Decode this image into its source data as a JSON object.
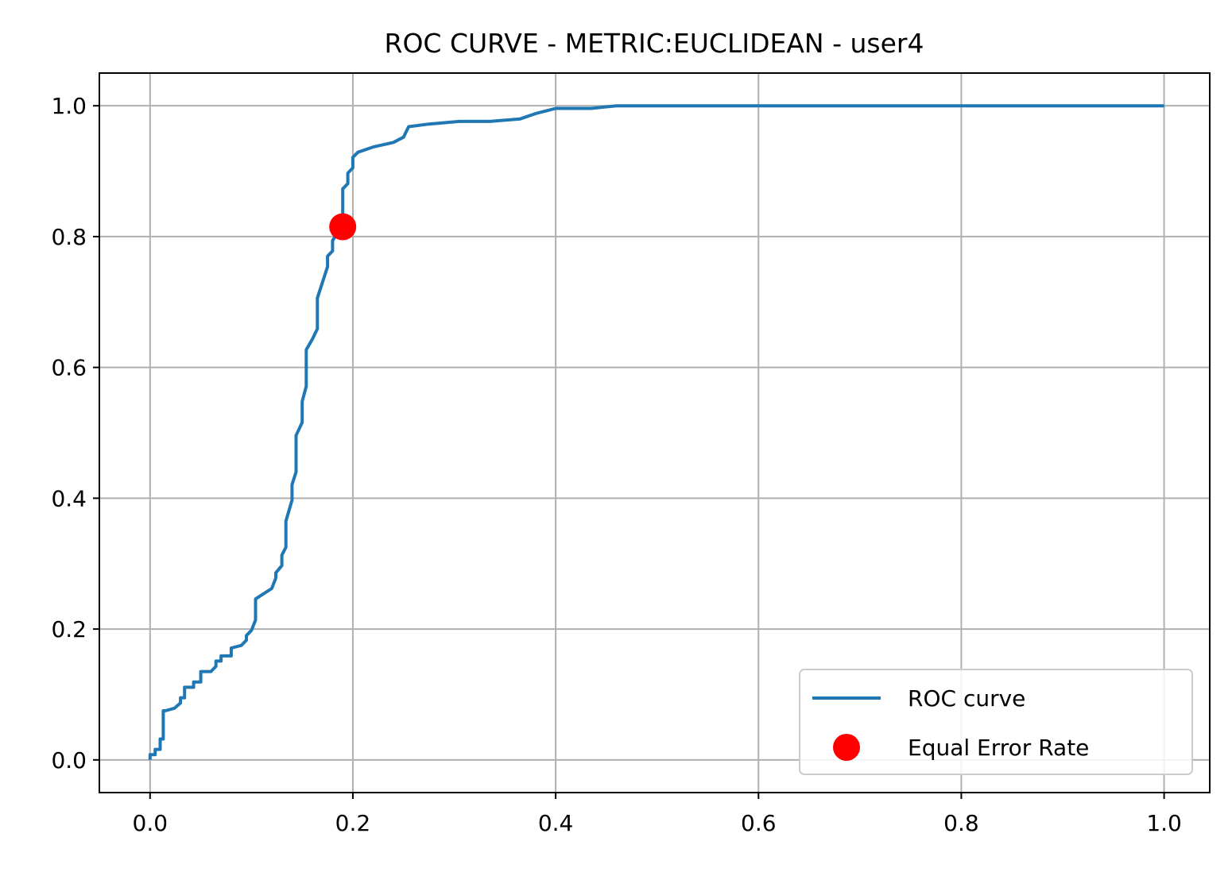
{
  "chart_data": {
    "type": "line",
    "title": "ROC CURVE - METRIC:EUCLIDEAN - user4",
    "xlabel": "",
    "ylabel": "",
    "xlim": [
      -0.05,
      1.045
    ],
    "ylim": [
      -0.05,
      1.05
    ],
    "x_ticks": [
      "0.0",
      "0.2",
      "0.4",
      "0.6",
      "0.8",
      "1.0"
    ],
    "y_ticks": [
      "0.0",
      "0.2",
      "0.4",
      "0.6",
      "0.8",
      "1.0"
    ],
    "grid": true,
    "legend_position": "lower right",
    "series": [
      {
        "name": "ROC curve",
        "color": "#1f77b4",
        "style": "line",
        "x": [
          0.0,
          0.0,
          0.005,
          0.005,
          0.01,
          0.01,
          0.013,
          0.013,
          0.015,
          0.015,
          0.024,
          0.03,
          0.03,
          0.034,
          0.034,
          0.043,
          0.043,
          0.05,
          0.05,
          0.06,
          0.065,
          0.065,
          0.07,
          0.07,
          0.08,
          0.08,
          0.09,
          0.095,
          0.095,
          0.1,
          0.104,
          0.104,
          0.12,
          0.124,
          0.124,
          0.13,
          0.13,
          0.134,
          0.134,
          0.14,
          0.14,
          0.144,
          0.144,
          0.15,
          0.15,
          0.154,
          0.154,
          0.16,
          0.165,
          0.165,
          0.175,
          0.175,
          0.18,
          0.18,
          0.19,
          0.19,
          0.195,
          0.195,
          0.2,
          0.2,
          0.205,
          0.22,
          0.24,
          0.25,
          0.255,
          0.275,
          0.305,
          0.335,
          0.365,
          0.38,
          0.4,
          0.405,
          0.435,
          0.46,
          1.0
        ],
        "y": [
          0.0,
          0.008,
          0.008,
          0.016,
          0.016,
          0.032,
          0.032,
          0.075,
          0.075,
          0.075,
          0.079,
          0.087,
          0.095,
          0.095,
          0.111,
          0.111,
          0.119,
          0.119,
          0.135,
          0.135,
          0.143,
          0.151,
          0.151,
          0.159,
          0.159,
          0.171,
          0.175,
          0.183,
          0.19,
          0.198,
          0.214,
          0.246,
          0.262,
          0.278,
          0.286,
          0.297,
          0.313,
          0.325,
          0.365,
          0.397,
          0.421,
          0.44,
          0.496,
          0.516,
          0.548,
          0.571,
          0.627,
          0.643,
          0.659,
          0.706,
          0.754,
          0.77,
          0.778,
          0.794,
          0.817,
          0.873,
          0.881,
          0.897,
          0.905,
          0.921,
          0.929,
          0.937,
          0.944,
          0.952,
          0.968,
          0.972,
          0.976,
          0.976,
          0.98,
          0.988,
          0.996,
          0.996,
          0.996,
          1.0,
          1.0
        ]
      },
      {
        "name": "Equal Error Rate",
        "color": "#ff0000",
        "style": "marker",
        "x": [
          0.19
        ],
        "y": [
          0.815
        ]
      }
    ]
  }
}
